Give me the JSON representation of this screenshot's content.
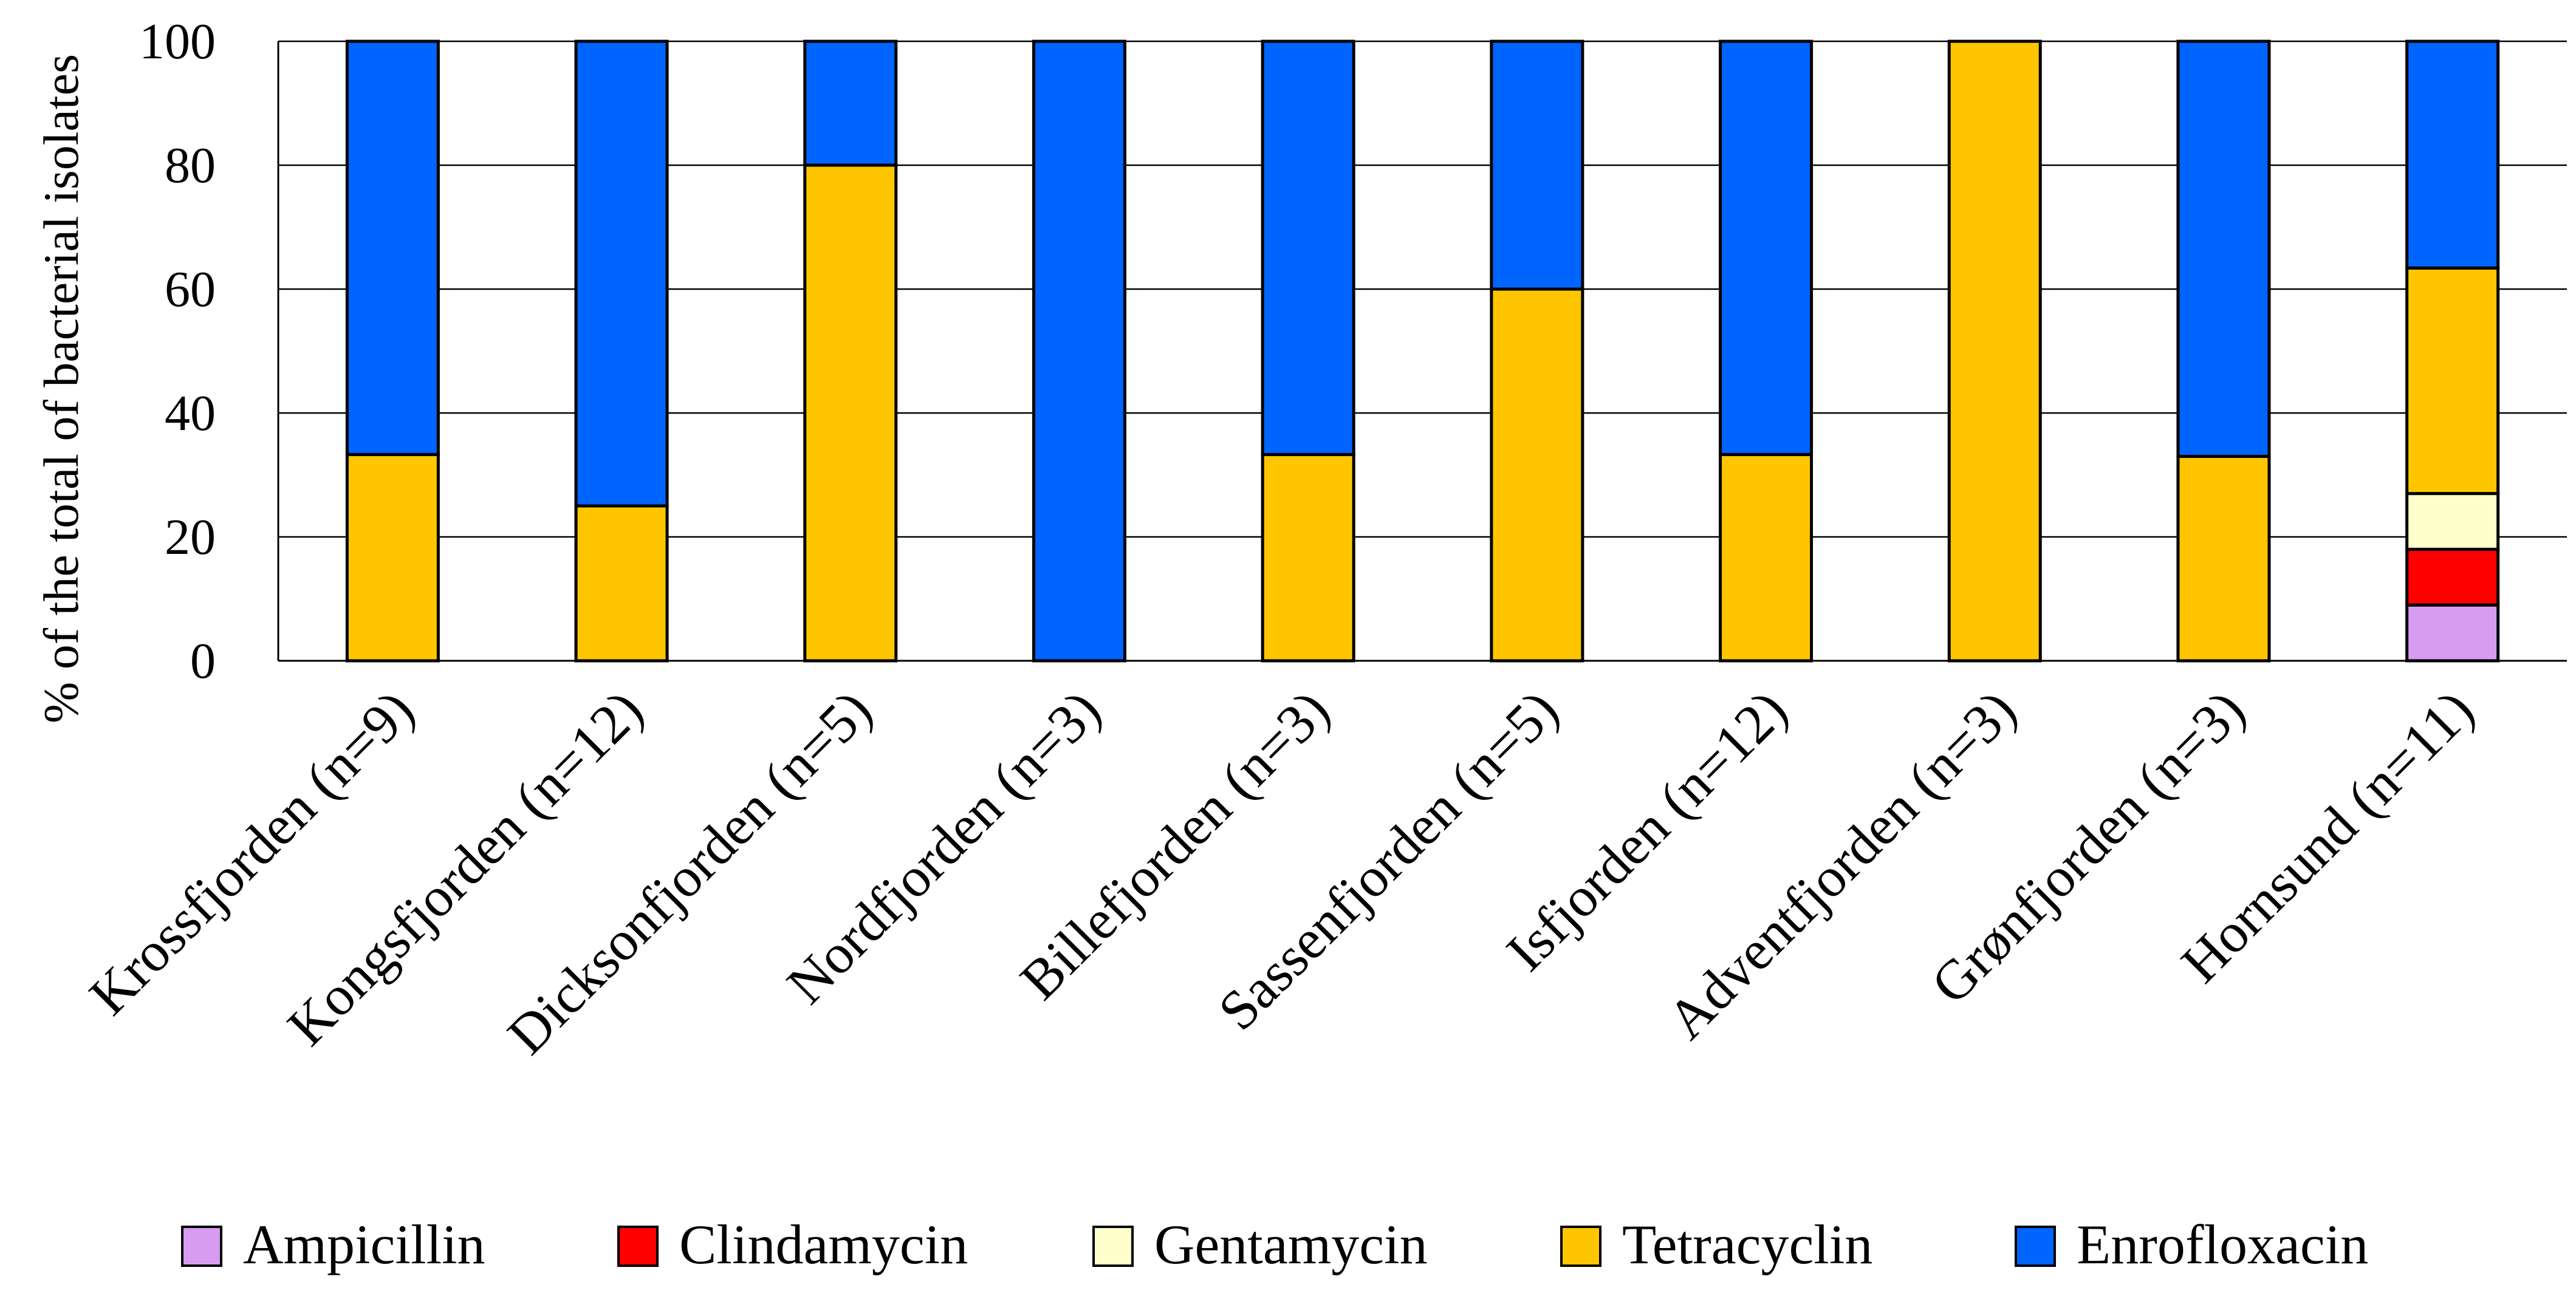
{
  "chart_data": {
    "type": "bar",
    "stacked": true,
    "categories": [
      "Krossfjorden (n=9)",
      "Kongsfjorden (n=12)",
      "Dicksonfjorden (n=5)",
      "Nordfjorden (n=3)",
      "Billefjorden (n=3)",
      "Sassenfjorden (n=5)",
      "Isfjorden (n=12)",
      "Adventfjorden (n=3)",
      "Grønfjorden (n=3)",
      "Hornsund (n=11)"
    ],
    "series": [
      {
        "name": "Ampicillin",
        "color": "#d79cf0",
        "values": [
          0,
          0,
          0,
          0,
          0,
          0,
          0,
          0,
          0,
          9
        ]
      },
      {
        "name": "Clindamycin",
        "color": "#ff0000",
        "values": [
          0,
          0,
          0,
          0,
          0,
          0,
          0,
          0,
          0,
          9
        ]
      },
      {
        "name": "Gentamycin",
        "color": "#ffffcc",
        "values": [
          0,
          0,
          0,
          0,
          0,
          0,
          0,
          0,
          0,
          9
        ]
      },
      {
        "name": "Tetracyclin",
        "color": "#ffc600",
        "values": [
          33.3,
          25,
          80,
          0,
          33.3,
          60,
          33.3,
          100,
          33,
          36.4
        ]
      },
      {
        "name": "Enrofloxacin",
        "color": "#0064ff",
        "values": [
          66.7,
          75,
          20,
          100,
          66.7,
          40,
          66.7,
          0,
          67,
          36.6
        ]
      }
    ],
    "title": "",
    "xlabel": "",
    "ylabel": "% of the total of bacterial isolates",
    "ylim": [
      0,
      100
    ],
    "yticks": [
      "0",
      "20",
      "40",
      "60",
      "80",
      "100"
    ],
    "grid": true,
    "legend_position": "bottom"
  }
}
